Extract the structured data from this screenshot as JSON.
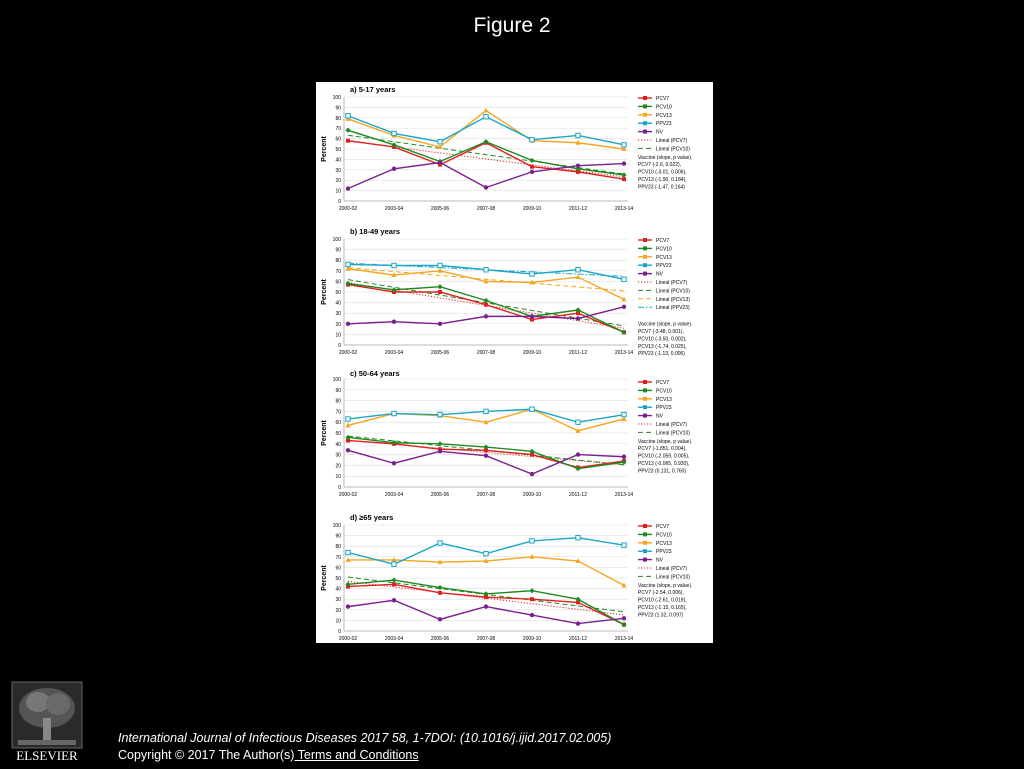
{
  "slide": {
    "title": "Figure 2"
  },
  "citation": {
    "text": "International Journal of Infectious Diseases 2017 58, 1-7DOI: (10.1016/j.ijid.2017.02.005)",
    "copyright": "Copyright © 2017 The Author(s)",
    "terms_link": " Terms and Conditions"
  },
  "logo": {
    "text": "ELSEVIER"
  },
  "colors": {
    "PCV7": "#e02020",
    "PCV10": "#1f8a1f",
    "PCV13": "#f5a623",
    "PPV23": "#1aa6c8",
    "NV": "#7a1f8f"
  },
  "chart_data": [
    {
      "type": "line",
      "title": "a) 5-17 years",
      "ylabel": "Percent",
      "ylim": [
        0,
        100
      ],
      "yticks": [
        "0",
        "10",
        "20",
        "30",
        "40",
        "50",
        "60",
        "70",
        "80",
        "90",
        "100"
      ],
      "categories": [
        "2000-02",
        "2003-04",
        "2005-06",
        "2007-08",
        "2009-10",
        "2011-12",
        "2013-14"
      ],
      "series": [
        {
          "name": "PCV7",
          "values": [
            58,
            52,
            35,
            56,
            33,
            28,
            21
          ]
        },
        {
          "name": "PCV10",
          "values": [
            68,
            54,
            38,
            57,
            39,
            31,
            25
          ]
        },
        {
          "name": "PCV13",
          "values": [
            79,
            63,
            52,
            87,
            58,
            56,
            50
          ]
        },
        {
          "name": "PPV23",
          "values": [
            82,
            65,
            57,
            81,
            59,
            63,
            54
          ]
        },
        {
          "name": "NV",
          "values": [
            12,
            31,
            37,
            13,
            28,
            34,
            36
          ]
        }
      ],
      "legend_entries": [
        "PCV7",
        "PCV10",
        "PCV13",
        "PPV23",
        "NV",
        "Lineal (PCV7)",
        "Lineal (PCV10)"
      ],
      "trendlines": [
        {
          "name": "Lineal (PCV7)",
          "series": "PCV7",
          "style": "dotted"
        },
        {
          "name": "Lineal (PCV10)",
          "series": "PCV10",
          "style": "dashed"
        }
      ],
      "stats": [
        "Vaccine (slope, p value).",
        "PCV7 (-2.6, 0.022),",
        "PCV10 (-3.01, 0.006),",
        "PCV13 (-1.90, 0.184),",
        "PPV23 (-1.47, 0.164)"
      ],
      "legend_position": "right"
    },
    {
      "type": "line",
      "title": "b) 18-49 years",
      "ylabel": "Percent",
      "ylim": [
        0,
        100
      ],
      "yticks": [
        "0",
        "10",
        "20",
        "30",
        "40",
        "50",
        "60",
        "70",
        "80",
        "90",
        "100"
      ],
      "categories": [
        "2000-02",
        "2003-04",
        "2005-06",
        "2007-08",
        "2009-10",
        "2011-12",
        "2013-14"
      ],
      "series": [
        {
          "name": "PCV7",
          "values": [
            57,
            50,
            50,
            38,
            24,
            30,
            12
          ]
        },
        {
          "name": "PCV10",
          "values": [
            58,
            52,
            55,
            42,
            27,
            33,
            12
          ]
        },
        {
          "name": "PCV13",
          "values": [
            72,
            66,
            70,
            60,
            59,
            64,
            43
          ]
        },
        {
          "name": "PPV23",
          "values": [
            76,
            75,
            75,
            71,
            67,
            71,
            62
          ]
        },
        {
          "name": "NV",
          "values": [
            20,
            22,
            20,
            27,
            27,
            25,
            36
          ]
        }
      ],
      "legend_entries": [
        "PCV7",
        "PCV10",
        "PCV13",
        "PPV23",
        "NV",
        "Lineal (PCV7)",
        "Lineal (PCV10)",
        "Lineal (PCV13)",
        "Lineal (PPV23)"
      ],
      "trendlines": [
        {
          "name": "Lineal (PCV7)",
          "series": "PCV7",
          "style": "dotted"
        },
        {
          "name": "Lineal (PCV10)",
          "series": "PCV10",
          "style": "dashed"
        },
        {
          "name": "Lineal (PCV13)",
          "series": "PCV13",
          "style": "dashed"
        },
        {
          "name": "Lineal (PPV23)",
          "series": "PPV23",
          "style": "dashdot"
        }
      ],
      "stats": [
        "Vaccine (slope, p value).",
        "PCV7 (-3.48, 0.001),",
        "PCV10 (-3.50, 0.002),",
        "PCV13 (-1.74, 0.025),",
        "PPV23 (-1.13, 0.006)"
      ],
      "legend_position": "right"
    },
    {
      "type": "line",
      "title": "c) 50-64 years",
      "ylabel": "Percent",
      "ylim": [
        0,
        100
      ],
      "yticks": [
        "0",
        "10",
        "20",
        "30",
        "40",
        "50",
        "60",
        "70",
        "80",
        "90",
        "100"
      ],
      "categories": [
        "2000-02",
        "2003-04",
        "2005-06",
        "2007-08",
        "2009-10",
        "2011-12",
        "2013-14"
      ],
      "series": [
        {
          "name": "PCV7",
          "values": [
            43,
            40,
            35,
            34,
            30,
            18,
            24
          ]
        },
        {
          "name": "PCV10",
          "values": [
            46,
            41,
            40,
            37,
            33,
            17,
            23
          ]
        },
        {
          "name": "PCV13",
          "values": [
            57,
            68,
            66,
            60,
            72,
            52,
            63
          ]
        },
        {
          "name": "PPV23",
          "values": [
            63,
            68,
            67,
            70,
            72,
            60,
            67
          ]
        },
        {
          "name": "NV",
          "values": [
            34,
            22,
            33,
            29,
            12,
            30,
            28
          ]
        }
      ],
      "legend_entries": [
        "PCV7",
        "PCV10",
        "PCV13",
        "PPV23",
        "NV",
        "Lineal (PCV7)",
        "Lineal (PCV10)"
      ],
      "trendlines": [
        {
          "name": "Lineal (PCV7)",
          "series": "PCV7",
          "style": "dotted"
        },
        {
          "name": "Lineal (PCV10)",
          "series": "PCV10",
          "style": "dashed"
        }
      ],
      "stats": [
        "Vaccine (slope, p value).",
        "PCV7 (-1.851, 0.004),",
        "PCV10 (-2.059, 0.005),",
        "PCV13 (-0.065, 0.930),",
        "PPV23 (0.131, 0.760)"
      ],
      "legend_position": "right"
    },
    {
      "type": "line",
      "title": "d) ≥65 years",
      "ylabel": "Percent",
      "ylim": [
        0,
        100
      ],
      "yticks": [
        "0",
        "10",
        "20",
        "30",
        "40",
        "50",
        "60",
        "70",
        "80",
        "90",
        "100"
      ],
      "categories": [
        "2000-02",
        "2003-04",
        "2005-06",
        "2007-08",
        "2009-10",
        "2011-12",
        "2013-14"
      ],
      "series": [
        {
          "name": "PCV7",
          "values": [
            42,
            44,
            36,
            32,
            30,
            27,
            6
          ]
        },
        {
          "name": "PCV10",
          "values": [
            44,
            48,
            41,
            35,
            38,
            30,
            6
          ]
        },
        {
          "name": "PCV13",
          "values": [
            67,
            67,
            65,
            66,
            70,
            66,
            43
          ]
        },
        {
          "name": "PPV23",
          "values": [
            74,
            63,
            83,
            73,
            85,
            88,
            81
          ]
        },
        {
          "name": "NV",
          "values": [
            23,
            29,
            11,
            23,
            15,
            7,
            12
          ]
        }
      ],
      "legend_entries": [
        "PCV7",
        "PCV10",
        "PCV13",
        "PPV23",
        "NV",
        "Lineal (PCV7)",
        "Lineal (PCV10)"
      ],
      "trendlines": [
        {
          "name": "Lineal (PCV7)",
          "series": "PCV7",
          "style": "dotted"
        },
        {
          "name": "Lineal (PCV10)",
          "series": "PCV10",
          "style": "dashed"
        }
      ],
      "stats": [
        "Vaccine (slope, p value).",
        "PCV7 (-2.54, 0.006),",
        "PCV10 (-2.61, 0.019),",
        "PCV13 (-1.15, 0.165),",
        "PPV23 (1.32, 0.097)"
      ],
      "legend_position": "right"
    }
  ]
}
